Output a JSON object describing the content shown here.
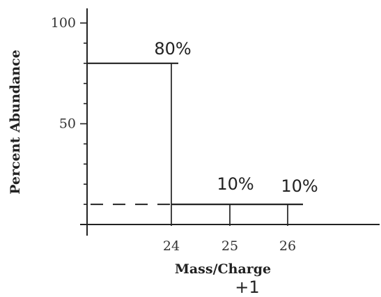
{
  "chart_data": {
    "type": "bar",
    "title": "",
    "xlabel": "Mass/Charge",
    "xlabel_note": "+1",
    "ylabel": "Percent Abundance",
    "categories": [
      "24",
      "25",
      "26"
    ],
    "values": [
      80,
      10,
      10
    ],
    "value_labels": [
      "80%",
      "10%",
      "10%"
    ],
    "y_ticks": [
      "100",
      "50"
    ],
    "ylim": [
      0,
      100
    ],
    "grid": false
  }
}
